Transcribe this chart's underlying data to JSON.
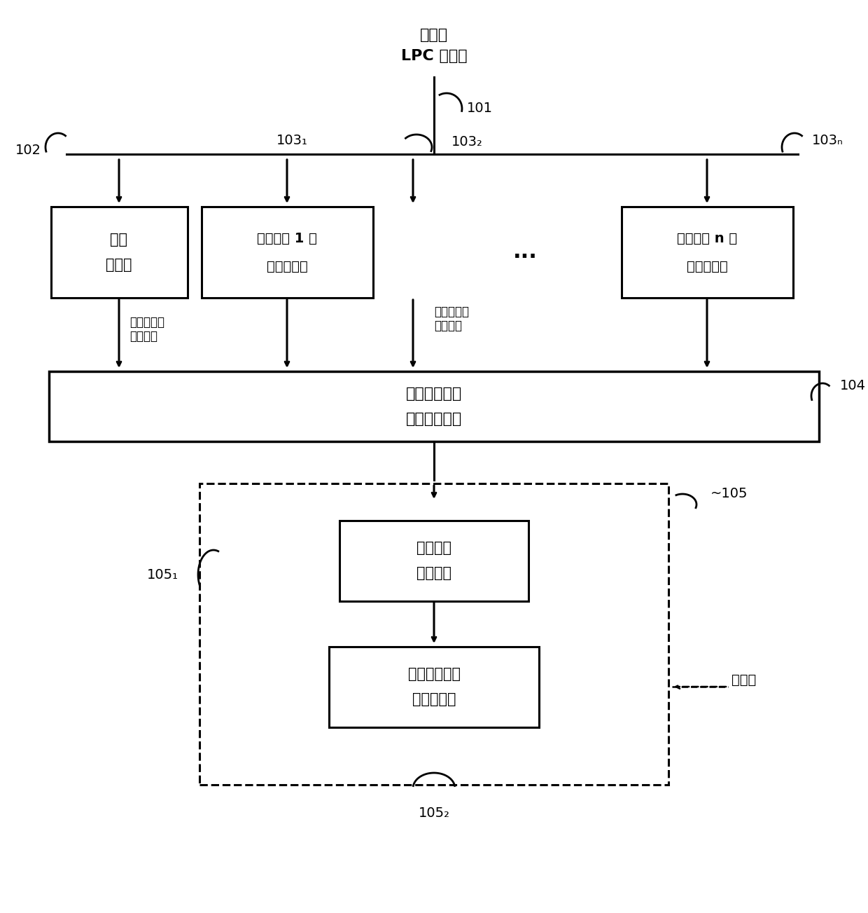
{
  "title_line1": "输入的",
  "title_line2": "LPC 滤波器",
  "label_101": "101",
  "label_102": "102",
  "label_103_1": "103₁",
  "label_103_2": "103₂",
  "label_103_n": "103ₙ",
  "label_104": "104",
  "label_105": "~105",
  "label_105_1": "105₁",
  "label_105_2": "105₂",
  "box_abs_line1": "绝对",
  "box_abs_line2": "量化器",
  "box_diff1_line1": "利用基准 1 的",
  "box_diff1_line2": "差分量化器",
  "box_diffn_line1": "利用基准 n 的",
  "box_diffn_line2": "差分量化器",
  "box_sel_line1": "基准的选择器",
  "box_sel_line2": "（选择标准）",
  "box_mode_line1": "发送量化",
  "box_mode_line2": "模式索引",
  "box_quant_line1": "发送所选择的",
  "box_quant_line2": "量化器索引",
  "label_bits1_line1": "比特数目及",
  "label_bits1_line2": "频谱失真",
  "label_bits2_line1": "比特数目及",
  "label_bits2_line2": "频谱失真",
  "label_transmitter": "发送器",
  "dots": "...",
  "bg_color": "#ffffff",
  "box_color": "#ffffff",
  "box_edge": "#000000",
  "arrow_color": "#000000",
  "text_color": "#000000"
}
